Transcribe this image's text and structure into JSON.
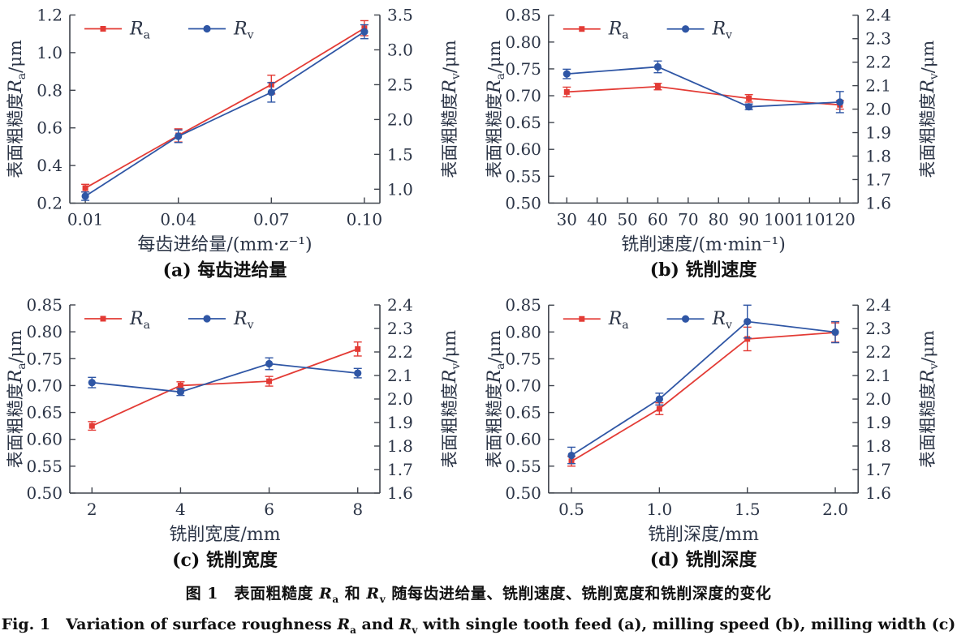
{
  "colors": {
    "ra": "#e33b35",
    "rv": "#2f56a5",
    "axis": "#3f444d",
    "text": "#2b3446"
  },
  "symbols": {
    "ra": {
      "base": "R",
      "sub": "a"
    },
    "rv": {
      "base": "R",
      "sub": "v"
    }
  },
  "chart_data": [
    {
      "id": "a",
      "type": "line",
      "panel_label": "(a) 每齿进给量",
      "xlabel": "每齿进给量/(mm·z⁻¹)",
      "x_tick_vals": [
        0.01,
        0.04,
        0.07,
        0.1
      ],
      "x_tick_labels": [
        "0.01",
        "0.04",
        "0.07",
        "0.10"
      ],
      "x_range": [
        0.005,
        0.105
      ],
      "left_axis": {
        "label_prefix": "表面粗糙度",
        "label_sym": "R",
        "label_sub": "a",
        "label_unit": "/μm",
        "range": [
          0.2,
          1.2
        ],
        "tick_vals": [
          0.2,
          0.4,
          0.6,
          0.8,
          1.0,
          1.2
        ],
        "tick_labels": [
          "0.2",
          "0.4",
          "0.6",
          "0.8",
          "1.0",
          "1.2"
        ]
      },
      "right_axis": {
        "label_prefix": "表面粗糙度",
        "label_sym": "R",
        "label_sub": "v",
        "label_unit": "/μm",
        "range": [
          0.8,
          3.5
        ],
        "tick_vals": [
          1.0,
          1.5,
          2.0,
          2.5,
          3.0,
          3.5
        ],
        "tick_labels": [
          "1.0",
          "1.5",
          "2.0",
          "2.5",
          "3.0",
          "3.5"
        ]
      },
      "series": [
        {
          "key": "ra",
          "axis": "left",
          "marker": "square",
          "x": [
            0.01,
            0.04,
            0.07,
            0.1
          ],
          "y": [
            0.28,
            0.56,
            0.83,
            1.13
          ],
          "err": [
            0.02,
            0.035,
            0.05,
            0.04
          ]
        },
        {
          "key": "rv",
          "axis": "right",
          "marker": "circle",
          "x": [
            0.01,
            0.04,
            0.07,
            0.1
          ],
          "y": [
            0.9,
            1.76,
            2.39,
            3.26
          ],
          "err": [
            0.06,
            0.09,
            0.14,
            0.1
          ]
        }
      ]
    },
    {
      "id": "b",
      "type": "line",
      "panel_label": "(b) 铣削速度",
      "xlabel": "铣削速度/(m·min⁻¹)",
      "x_tick_vals": [
        30,
        40,
        50,
        60,
        70,
        80,
        90,
        100,
        110,
        120
      ],
      "x_tick_labels": [
        "30",
        "40",
        "50",
        "60",
        "70",
        "80",
        "90",
        "100",
        "110",
        "120"
      ],
      "x_range": [
        24,
        126
      ],
      "left_axis": {
        "label_prefix": "表面粗糙度",
        "label_sym": "R",
        "label_sub": "a",
        "label_unit": "/μm",
        "range": [
          0.5,
          0.85
        ],
        "tick_vals": [
          0.5,
          0.55,
          0.6,
          0.65,
          0.7,
          0.75,
          0.8,
          0.85
        ],
        "tick_labels": [
          "0.50",
          "0.55",
          "0.60",
          "0.65",
          "0.70",
          "0.75",
          "0.80",
          "0.85"
        ]
      },
      "right_axis": {
        "label_prefix": "表面粗糙度",
        "label_sym": "R",
        "label_sub": "v",
        "label_unit": "/μm",
        "range": [
          1.6,
          2.4
        ],
        "tick_vals": [
          1.6,
          1.7,
          1.8,
          1.9,
          2.0,
          2.1,
          2.2,
          2.3,
          2.4
        ],
        "tick_labels": [
          "1.6",
          "1.7",
          "1.8",
          "1.9",
          "2.0",
          "2.1",
          "2.2",
          "2.3",
          "2.4"
        ]
      },
      "series": [
        {
          "key": "ra",
          "axis": "left",
          "marker": "square",
          "x": [
            30,
            60,
            90,
            120
          ],
          "y": [
            0.707,
            0.717,
            0.695,
            0.683
          ],
          "err": [
            0.009,
            0.006,
            0.007,
            0.008
          ]
        },
        {
          "key": "rv",
          "axis": "right",
          "marker": "circle",
          "x": [
            30,
            60,
            90,
            120
          ],
          "y": [
            2.15,
            2.18,
            2.01,
            2.03
          ],
          "err": [
            0.02,
            0.025,
            0.012,
            0.045
          ]
        }
      ]
    },
    {
      "id": "c",
      "type": "line",
      "panel_label": "(c) 铣削宽度",
      "xlabel": "铣削宽度/mm",
      "x_tick_vals": [
        2,
        4,
        6,
        8
      ],
      "x_tick_labels": [
        "2",
        "4",
        "6",
        "8"
      ],
      "x_range": [
        1.5,
        8.5
      ],
      "left_axis": {
        "label_prefix": "表面粗糙度",
        "label_sym": "R",
        "label_sub": "a",
        "label_unit": "/μm",
        "range": [
          0.5,
          0.85
        ],
        "tick_vals": [
          0.5,
          0.55,
          0.6,
          0.65,
          0.7,
          0.75,
          0.8,
          0.85
        ],
        "tick_labels": [
          "0.50",
          "0.55",
          "0.60",
          "0.65",
          "0.70",
          "0.75",
          "0.80",
          "0.85"
        ]
      },
      "right_axis": {
        "label_prefix": "表面粗糙度",
        "label_sym": "R",
        "label_sub": "v",
        "label_unit": "/μm",
        "range": [
          1.6,
          2.4
        ],
        "tick_vals": [
          1.6,
          1.7,
          1.8,
          1.9,
          2.0,
          2.1,
          2.2,
          2.3,
          2.4
        ],
        "tick_labels": [
          "1.6",
          "1.7",
          "1.8",
          "1.9",
          "2.0",
          "2.1",
          "2.2",
          "2.3",
          "2.4"
        ]
      },
      "series": [
        {
          "key": "ra",
          "axis": "left",
          "marker": "square",
          "x": [
            2,
            4,
            6,
            8
          ],
          "y": [
            0.625,
            0.7,
            0.708,
            0.768
          ],
          "err": [
            0.008,
            0.007,
            0.009,
            0.013
          ]
        },
        {
          "key": "rv",
          "axis": "right",
          "marker": "circle",
          "x": [
            2,
            4,
            6,
            8
          ],
          "y": [
            2.07,
            2.03,
            2.15,
            2.11
          ],
          "err": [
            0.022,
            0.015,
            0.025,
            0.02
          ]
        }
      ]
    },
    {
      "id": "d",
      "type": "line",
      "panel_label": "(d) 铣削深度",
      "xlabel": "铣削深度/mm",
      "x_tick_vals": [
        0.5,
        1.0,
        1.5,
        2.0
      ],
      "x_tick_labels": [
        "0.5",
        "1.0",
        "1.5",
        "2.0"
      ],
      "x_range": [
        0.37,
        2.13
      ],
      "left_axis": {
        "label_prefix": "表面粗糙度",
        "label_sym": "R",
        "label_sub": "a",
        "label_unit": "/μm",
        "range": [
          0.5,
          0.85
        ],
        "tick_vals": [
          0.5,
          0.55,
          0.6,
          0.65,
          0.7,
          0.75,
          0.8,
          0.85
        ],
        "tick_labels": [
          "0.50",
          "0.55",
          "0.60",
          "0.65",
          "0.70",
          "0.75",
          "0.80",
          "0.85"
        ]
      },
      "right_axis": {
        "label_prefix": "表面粗糙度",
        "label_sym": "R",
        "label_sub": "v",
        "label_unit": "/μm",
        "range": [
          1.6,
          2.4
        ],
        "tick_vals": [
          1.6,
          1.7,
          1.8,
          1.9,
          2.0,
          2.1,
          2.2,
          2.3,
          2.4
        ],
        "tick_labels": [
          "1.6",
          "1.7",
          "1.8",
          "1.9",
          "2.0",
          "2.1",
          "2.2",
          "2.3",
          "2.4"
        ]
      },
      "series": [
        {
          "key": "ra",
          "axis": "left",
          "marker": "square",
          "x": [
            0.5,
            1.0,
            1.5,
            2.0
          ],
          "y": [
            0.559,
            0.657,
            0.787,
            0.799
          ],
          "err": [
            0.009,
            0.011,
            0.022,
            0.018
          ]
        },
        {
          "key": "rv",
          "axis": "right",
          "marker": "circle",
          "x": [
            0.5,
            1.0,
            1.5,
            2.0
          ],
          "y": [
            1.76,
            2.0,
            2.33,
            2.285
          ],
          "err": [
            0.035,
            0.025,
            0.07,
            0.045
          ]
        }
      ]
    }
  ],
  "caption": {
    "zh": {
      "pre": "图 1　表面粗糙度 ",
      "mid": " 和 ",
      "post": " 随每齿进给量、铣削速度、铣削宽度和铣削深度的变化"
    },
    "en": {
      "pre": "Fig. 1　Variation of surface roughness ",
      "mid": " and ",
      "post": " with single tooth feed (a), milling speed (b), milling width (c) and milling depth (d)"
    }
  }
}
